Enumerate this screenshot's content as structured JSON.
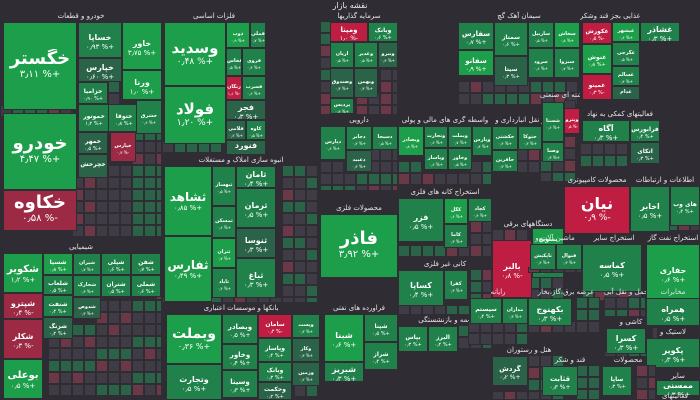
{
  "header": {
    "title": "نقشه بازار"
  },
  "colors": {
    "pos3": "#1c9e4a",
    "pos2": "#20814a",
    "pos1": "#2a6347",
    "neutral": "#3f3c45",
    "neg1": "#6a3847",
    "neg2": "#9c2a45",
    "neg3": "#c01d43",
    "bg": "#2f2c33"
  },
  "sectors": [
    {
      "title": "خودرو و قطعات",
      "tiles": [
        {
          "name": "خگستر",
          "pct": "۳٫۱۱ %+",
          "color": "pos3"
        },
        {
          "name": "خودرو",
          "pct": "۴٫۴۷ %+",
          "color": "pos3"
        },
        {
          "name": "خکاوه",
          "pct": "۰٫۵۸ %-",
          "color": "neg2"
        },
        {
          "name": "خساپا",
          "pct": "۰٫۹۳ %+",
          "color": "pos2"
        },
        {
          "name": "خاور",
          "pct": "۳٫۷۵ %+",
          "color": "pos3"
        },
        {
          "name": "خپارس",
          "pct": "۰٫۶۰ %+",
          "color": "pos1"
        },
        {
          "name": "خزامیا",
          "pct": "۰٫۹۰ %+",
          "color": "pos2"
        },
        {
          "name": "ورنا",
          "pct": "۱٫۰ %+",
          "color": "pos3"
        },
        {
          "name": "خموتور",
          "pct": "۱٫۲ %+",
          "color": "pos2"
        },
        {
          "name": "ختوقا",
          "pct": "۰٫۸ %+",
          "color": "pos2"
        },
        {
          "name": "خمهر",
          "pct": "۰٫۵ %+",
          "color": "pos1"
        },
        {
          "name": "خپارس",
          "pct": "۰٫۳ %-",
          "color": "neg2"
        },
        {
          "name": "خشرق",
          "pct": "۰٫۶ %+",
          "color": "pos2"
        },
        {
          "name": "خچرخش",
          "pct": "",
          "color": "pos1"
        }
      ]
    },
    {
      "title": "فلزات اساسی",
      "tiles": [
        {
          "name": "وسدید",
          "pct": "۰٫۴۸ %+",
          "color": "pos3"
        },
        {
          "name": "فولاد",
          "pct": "۱٫۲۰ %+",
          "color": "pos3"
        },
        {
          "name": "ذوب",
          "pct": "۰٫۹ %+",
          "color": "pos3"
        },
        {
          "name": "فملی",
          "pct": "۰٫۷ %+",
          "color": "pos2"
        },
        {
          "name": "فخاس",
          "pct": "۰٫۵ %+",
          "color": "pos2"
        },
        {
          "name": "فروی",
          "pct": "۰٫۴ %+",
          "color": "pos2"
        },
        {
          "name": "زنگان",
          "pct": "۱٫۱ %-",
          "color": "neg3"
        },
        {
          "name": "فسرب",
          "pct": "۰٫۶ %+",
          "color": "pos2"
        },
        {
          "name": "فجر",
          "pct": "۰٫۳ %+",
          "color": "pos1"
        },
        {
          "name": "فلامی",
          "pct": "۰٫۲ %+",
          "color": "pos1"
        },
        {
          "name": "کاوه",
          "pct": "۰٫۵ %+",
          "color": "pos2"
        },
        {
          "name": "فنورد",
          "pct": "۰٫۲ %+",
          "color": "pos1"
        }
      ]
    },
    {
      "title": "سرمایه گذاریها",
      "tiles": [
        {
          "name": "ومپنا",
          "pct": "۱٫۰ %-",
          "color": "neg3"
        },
        {
          "name": "وبانک",
          "pct": "۰٫۶ %+",
          "color": "pos2"
        },
        {
          "name": "آریان",
          "pct": "۰٫۵ %+",
          "color": "pos2"
        },
        {
          "name": "وغدیر",
          "pct": "۰٫۵ %+",
          "color": "pos2"
        },
        {
          "name": "ونیرو",
          "pct": "۰٫۴ %+",
          "color": "pos1"
        },
        {
          "name": "وصندوق",
          "pct": "۰٫۳ %+",
          "color": "pos1"
        },
        {
          "name": "وبهمن",
          "pct": "۰٫۳ %+",
          "color": "pos1"
        },
        {
          "name": "پردیس",
          "pct": "۰٫۴ %+",
          "color": "pos2"
        }
      ]
    },
    {
      "title": "سیمان آهک گچ",
      "tiles": [
        {
          "name": "سفارس",
          "pct": "۰٫۷ %+",
          "color": "pos2"
        },
        {
          "name": "سمتاز",
          "pct": "۰٫۶ %+",
          "color": "pos2"
        },
        {
          "name": "ساربیل",
          "pct": "۰٫۵ %+",
          "color": "pos2"
        },
        {
          "name": "سخاش",
          "pct": "۰٫۸ %+",
          "color": "pos3"
        },
        {
          "name": "سفانو",
          "pct": "۰٫۹ %+",
          "color": "pos3"
        },
        {
          "name": "سیتا",
          "pct": "۰٫۳ %+",
          "color": "pos1"
        },
        {
          "name": "سرود",
          "pct": "۰٫۶ %+",
          "color": "pos2"
        },
        {
          "name": "سبزوا",
          "pct": "۰٫۷ %+",
          "color": "pos2"
        }
      ]
    },
    {
      "title": "غذایی بجز قند وشکر",
      "tiles": [
        {
          "name": "غکورش",
          "pct": "۰٫۵ %-",
          "color": "neg3"
        },
        {
          "name": "غبشهر",
          "pct": "۰٫۶ %+",
          "color": "pos3"
        },
        {
          "name": "غنوش",
          "pct": "۰٫۸ %+",
          "color": "pos3"
        },
        {
          "name": "غمینو",
          "pct": "۰٫۳ %-",
          "color": "neg3"
        },
        {
          "name": "غگرجی",
          "pct": "۰٫۵ %+",
          "color": "pos2"
        },
        {
          "name": "غسالم",
          "pct": "۰٫۴ %+",
          "color": "pos2"
        },
        {
          "name": "غدام",
          "pct": "۰٫۲ %+",
          "color": "pos1"
        },
        {
          "name": "غشاذر",
          "pct": "۰٫۳ %+",
          "color": "pos2"
        }
      ]
    },
    {
      "title": "انبوه سازی املاک و مستغلات",
      "tiles": [
        {
          "name": "ثشاهد",
          "pct": "۰٫۸۵ %+",
          "color": "pos3"
        },
        {
          "name": "ثفارس",
          "pct": "۰٫۴۹ %+",
          "color": "pos3"
        },
        {
          "name": "ثبهساز",
          "pct": "۰٫۵ %+",
          "color": "pos2"
        },
        {
          "name": "ثامان",
          "pct": "۰٫۴ %+",
          "color": "pos2"
        },
        {
          "name": "ثمسکن",
          "pct": "۰٫۶ %+",
          "color": "pos2"
        },
        {
          "name": "ثرمان",
          "pct": "۰٫۵ %+",
          "color": "pos2"
        },
        {
          "name": "ثتران",
          "pct": "۰٫۷ %+",
          "color": "pos3"
        },
        {
          "name": "ثنوسا",
          "pct": "۰٫۳ %+",
          "color": "pos1"
        },
        {
          "name": "ثاباد",
          "pct": "۰٫۴ %+",
          "color": "pos2"
        },
        {
          "name": "ثباغ",
          "pct": "۰٫۳ %+",
          "color": "pos2"
        }
      ]
    },
    {
      "title": "دارویی",
      "tiles": [
        {
          "name": "دپارس",
          "pct": "۰٫۶ %+",
          "color": "pos2"
        },
        {
          "name": "دجابر",
          "pct": "۰٫۴ %+",
          "color": "pos2"
        },
        {
          "name": "دسبحا",
          "pct": "۰٫۵ %+",
          "color": "pos2"
        },
        {
          "name": "دعبید",
          "pct": "۰٫۳ %+",
          "color": "pos1"
        }
      ]
    },
    {
      "title": "واسطه گری های مالی و پولی",
      "tiles": [
        {
          "name": "وبصادر",
          "pct": "۰٫۸ %+",
          "color": "pos3"
        },
        {
          "name": "وتجارت",
          "pct": "۰٫۶ %+",
          "color": "pos2"
        },
        {
          "name": "وبملت",
          "pct": "۰٫۷ %+",
          "color": "pos2"
        },
        {
          "name": "وپاسار",
          "pct": "۰٫۶ %+",
          "color": "pos2"
        },
        {
          "name": "وخاور",
          "pct": "۰٫۵ %+",
          "color": "pos2"
        },
        {
          "name": "وپارس",
          "pct": "۰٫۴ %+",
          "color": "pos2"
        }
      ]
    },
    {
      "title": "حمل و نقل انبارداری و",
      "tiles": [
        {
          "name": "حکشتی",
          "pct": "۰٫۴ %+",
          "color": "pos2"
        },
        {
          "name": "حآفرین",
          "pct": "۰٫۳ %+",
          "color": "pos2"
        },
        {
          "name": "حتوکا",
          "pct": "۰٫۳ %+",
          "color": "pos2"
        }
      ]
    },
    {
      "title": "چندرشته ای صنعتی",
      "tiles": [
        {
          "name": "وپترو",
          "pct": "۰٫۵ %-",
          "color": "neg3"
        },
        {
          "name": "شستا",
          "pct": "۰٫۶ %+",
          "color": "pos2"
        },
        {
          "name": "وصنا",
          "pct": "۰٫۳ %+",
          "color": "pos2"
        }
      ]
    },
    {
      "title": "فعالیتهای کمکی به نهاد",
      "tiles": [
        {
          "name": "فرابورس",
          "pct": "۰٫۴ %+",
          "color": "pos2"
        },
        {
          "name": "آگاه",
          "pct": "۰٫۳ %+",
          "color": "pos2"
        },
        {
          "name": "اتکای",
          "pct": "۰٫۳ %+",
          "color": "pos1"
        }
      ]
    },
    {
      "title": "استخراج کانه های فلزی",
      "tiles": [
        {
          "name": "فزر",
          "pct": "۰٫۵ %+",
          "color": "pos2"
        },
        {
          "name": "کگل",
          "pct": "۰٫۶ %+",
          "color": "pos3"
        },
        {
          "name": "کچاد",
          "pct": "۰٫۴ %+",
          "color": "pos2"
        },
        {
          "name": "کاما",
          "pct": "۰٫۳ %+",
          "color": "pos2"
        }
      ]
    },
    {
      "title": "محصولات کامپیوتری",
      "tiles": [
        {
          "name": "نیان",
          "pct": "۰٫۹ %-",
          "color": "neg3"
        }
      ]
    },
    {
      "title": "اطلاعات و ارتباطات",
      "tiles": [
        {
          "name": "اخابر",
          "pct": "۰٫۵ %+",
          "color": "pos2"
        },
        {
          "name": "های وب",
          "pct": "۰٫۴ %+",
          "color": "pos2"
        }
      ]
    },
    {
      "title": "محصولات فلزی",
      "tiles": [
        {
          "name": "فاذر",
          "pct": "۳٫۹۲ %+",
          "color": "pos3"
        }
      ]
    },
    {
      "title": "کانی غیر فلزی",
      "tiles": [
        {
          "name": "کساپا",
          "pct": "۰٫۴ %+",
          "color": "pos2"
        },
        {
          "name": "کفرا",
          "pct": "۰٫۳ %+",
          "color": "pos2"
        }
      ]
    },
    {
      "title": "دستگاههای برقی",
      "tiles": [
        {
          "name": "بالبر",
          "pct": "۰٫۸ %-",
          "color": "neg3"
        },
        {
          "name": "بسویچ",
          "pct": "۰٫۵ %+",
          "color": "pos3"
        },
        {
          "name": "بموتو",
          "pct": "۰٫۴ %+",
          "color": "pos2"
        }
      ]
    },
    {
      "title": "ماشین آلات و",
      "tiles": [
        {
          "name": "تاپکیش",
          "pct": "۰٫۴ %+",
          "color": "pos2"
        },
        {
          "name": "فنوال",
          "pct": "۰٫۳ %+",
          "color": "pos2"
        }
      ]
    },
    {
      "title": "استخراج سایر",
      "tiles": [
        {
          "name": "کماسه",
          "pct": "۰٫۵ %+",
          "color": "pos2"
        }
      ]
    },
    {
      "title": "استخراج نفت گاز",
      "tiles": [
        {
          "name": "حفاری",
          "pct": "۰٫۶ %+",
          "color": "pos3"
        }
      ]
    },
    {
      "title": "شیمیایی",
      "tiles": [
        {
          "name": "شکویر",
          "pct": "۱٫۲ %+",
          "color": "pos3"
        },
        {
          "name": "شسپا",
          "pct": "۰٫۸ %+",
          "color": "pos3"
        },
        {
          "name": "شیران",
          "pct": "۰٫۷ %+",
          "color": "pos2"
        },
        {
          "name": "شپلی",
          "pct": "۰٫۶ %+",
          "color": "pos2"
        },
        {
          "name": "شفن",
          "pct": "۰٫۷ %+",
          "color": "pos2"
        },
        {
          "name": "شلعاب",
          "pct": "۰٫۵ %+",
          "color": "pos2"
        },
        {
          "name": "شپترو",
          "pct": "۰٫۴ %-",
          "color": "neg2"
        },
        {
          "name": "شکلر",
          "pct": "۰٫۳ %-",
          "color": "neg2"
        },
        {
          "name": "شنفت",
          "pct": "۰٫۴ %+",
          "color": "pos2"
        },
        {
          "name": "شخارک",
          "pct": "۰٫۳ %+",
          "color": "pos2"
        },
        {
          "name": "شتران",
          "pct": "۰٫۵ %+",
          "color": "pos2"
        },
        {
          "name": "شملی",
          "pct": "۰٫۶ %+",
          "color": "pos2"
        },
        {
          "name": "شدوص",
          "pct": "۰٫۳ %+",
          "color": "pos1"
        },
        {
          "name": "بوعلی",
          "pct": "۰٫۵ %+",
          "color": "pos3"
        },
        {
          "name": "شزنگ",
          "pct": "۰٫۲ %+",
          "color": "pos1"
        }
      ]
    },
    {
      "title": "بانکها و موسسات اعتباری",
      "tiles": [
        {
          "name": "وبملت",
          "pct": "۰٫۳۶ %+",
          "color": "pos3"
        },
        {
          "name": "وتجارت",
          "pct": "۰٫۵ %+",
          "color": "pos2"
        },
        {
          "name": "سامان",
          "pct": "۰٫۴ %-",
          "color": "neg3"
        },
        {
          "name": "وپست",
          "pct": "۰٫۳ %+",
          "color": "pos2"
        },
        {
          "name": "وبصادر",
          "pct": "۰٫۵ %+",
          "color": "pos2"
        },
        {
          "name": "وخاور",
          "pct": "۰٫۴ %+",
          "color": "pos2"
        },
        {
          "name": "وپاسار",
          "pct": "۰٫۴ %+",
          "color": "pos2"
        },
        {
          "name": "وکار",
          "pct": "۰٫۳ %+",
          "color": "pos1"
        },
        {
          "name": "وسینا",
          "pct": "۰٫۳ %+",
          "color": "pos2"
        },
        {
          "name": "وبانک",
          "pct": "۰٫۳ %+",
          "color": "pos2"
        },
        {
          "name": "وحکمت",
          "pct": "۰٫۲ %+",
          "color": "pos1"
        },
        {
          "name": "وزمین",
          "pct": "۰٫۲ %+",
          "color": "pos1"
        }
      ]
    },
    {
      "title": "فراورده های نفتی",
      "tiles": [
        {
          "name": "شبنا",
          "pct": "۰٫۶ %+",
          "color": "pos3"
        },
        {
          "name": "شپنا",
          "pct": "۰٫۵ %+",
          "color": "pos2"
        },
        {
          "name": "شراز",
          "pct": "۰٫۴ %+",
          "color": "pos2"
        },
        {
          "name": "شبریز",
          "pct": "۰٫۳ %+",
          "color": "pos2"
        }
      ]
    },
    {
      "title": "بیمه و بازنشستگی",
      "tiles": [
        {
          "name": "بپاس",
          "pct": "۰٫۳ %+",
          "color": "pos2"
        },
        {
          "name": "البرز",
          "pct": "۰٫۲ %+",
          "color": "pos2"
        }
      ]
    },
    {
      "title": "رایانه",
      "tiles": [
        {
          "name": "سیستم",
          "pct": "۰٫۴ %+",
          "color": "pos2"
        },
        {
          "name": "مداران",
          "pct": "۰٫۳ %+",
          "color": "pos2"
        }
      ]
    },
    {
      "title": "عرضه برق،گاز،بخار",
      "tiles": [
        {
          "name": "بکهنوج",
          "pct": "۰٫۳ %+",
          "color": "pos2"
        }
      ]
    },
    {
      "title": "حمل و نقل آبی",
      "tiles": []
    },
    {
      "title": "مخابرات",
      "tiles": [
        {
          "name": "همراه",
          "pct": "۰٫۵ %+",
          "color": "pos2"
        }
      ]
    },
    {
      "title": "کاشی و",
      "tiles": [
        {
          "name": "کسرا",
          "pct": "۰٫۳ %+",
          "color": "pos2"
        }
      ]
    },
    {
      "title": "لاستیک و",
      "tiles": [
        {
          "name": "پکویر",
          "pct": "۰٫۳ %+",
          "color": "pos2"
        }
      ]
    },
    {
      "title": "هتل و رستوران",
      "tiles": [
        {
          "name": "گردش",
          "pct": "۰٫۲ %+",
          "color": "pos1"
        }
      ]
    },
    {
      "title": "قند و شکر",
      "tiles": [
        {
          "name": "قثابت",
          "pct": "۰٫۳ %+",
          "color": "pos2"
        }
      ]
    },
    {
      "title": "محصولات",
      "tiles": [
        {
          "name": "ساپا",
          "pct": "۰٫۳ %+",
          "color": "pos2"
        }
      ]
    },
    {
      "title": "سایر",
      "tiles": [
        {
          "name": "ممسنی",
          "pct": "۰٫۳ %+",
          "color": "pos2"
        }
      ]
    },
    {
      "title": "فعالیتهای",
      "tiles": []
    }
  ]
}
